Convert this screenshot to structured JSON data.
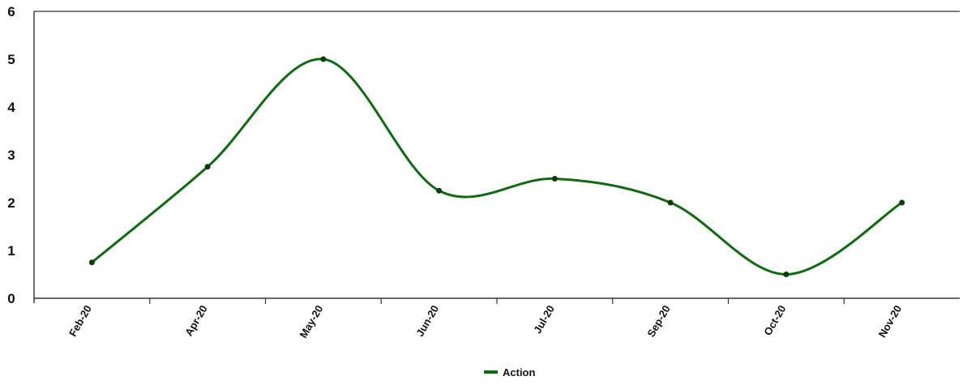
{
  "chart_data": {
    "type": "line",
    "categories": [
      "Feb-20",
      "Apr-20",
      "May-20",
      "Jun-20",
      "Jul-20",
      "Sep-20",
      "Oct-20",
      "Nov-20"
    ],
    "series": [
      {
        "name": "Action",
        "values": [
          0.75,
          2.75,
          5.0,
          2.25,
          2.5,
          2.0,
          0.5,
          2.0
        ],
        "color": "#0f6b12"
      }
    ],
    "y_ticks": [
      "0",
      "1",
      "2",
      "3",
      "4",
      "5",
      "6"
    ],
    "ylim": [
      0,
      6
    ],
    "grid": false,
    "legend": "bottom-center",
    "smooth": true
  }
}
